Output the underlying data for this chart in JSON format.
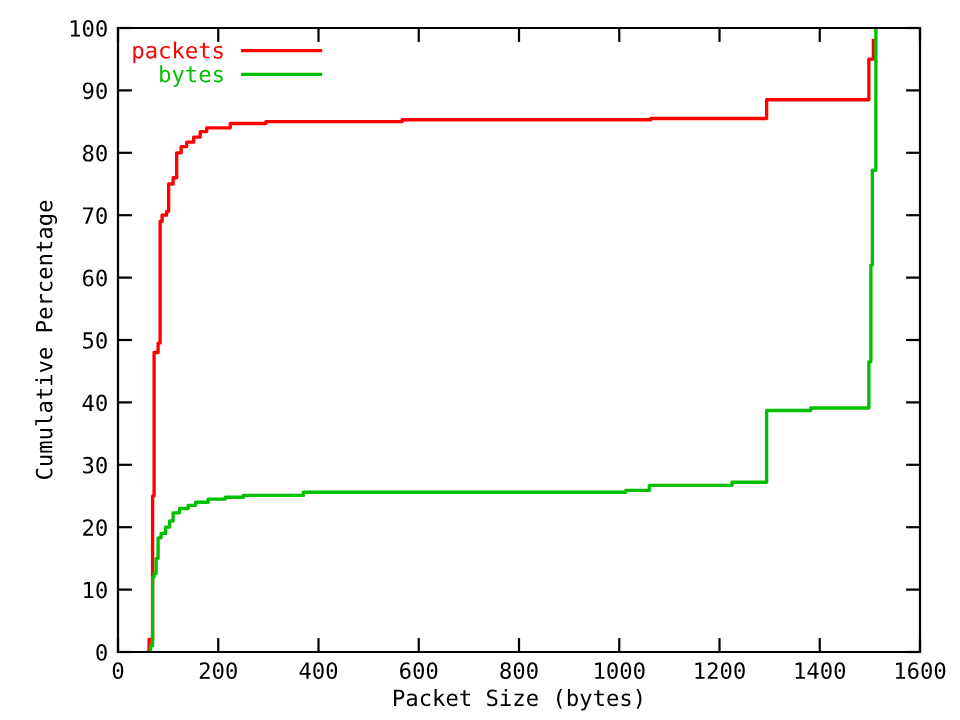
{
  "chart_data": {
    "type": "step",
    "xlabel": "Packet Size (bytes)",
    "ylabel": "Cumulative Percentage",
    "xlim": [
      0,
      1600
    ],
    "ylim": [
      0,
      100
    ],
    "xticks": [
      0,
      200,
      400,
      600,
      800,
      1000,
      1200,
      1400,
      1600
    ],
    "yticks": [
      0,
      10,
      20,
      30,
      40,
      50,
      60,
      70,
      80,
      90,
      100
    ],
    "grid": false,
    "legend": "top left",
    "line_style": "solid",
    "marker": "none",
    "series": [
      {
        "name": "packets",
        "color": "#ff0000",
        "x": [
          61,
          62,
          69,
          72,
          80,
          84,
          88,
          97,
          101,
          110,
          117,
          126,
          137,
          151,
          164,
          177,
          224,
          295,
          567,
          1063,
          1294,
          1498,
          1507
        ],
        "values": [
          0,
          2,
          25,
          48,
          49.5,
          69,
          70,
          70.6,
          75,
          76,
          80,
          81,
          81.7,
          82.5,
          83.4,
          84,
          84.7,
          85,
          85.3,
          85.5,
          88.5,
          95,
          98
        ]
      },
      {
        "name": "bytes",
        "color": "#00c000",
        "x": [
          61,
          65,
          69,
          72,
          76,
          80,
          86,
          95,
          103,
          110,
          123,
          140,
          155,
          180,
          214,
          250,
          370,
          1013,
          1060,
          1225,
          1294,
          1382,
          1498,
          1502,
          1505,
          1512
        ],
        "values": [
          0,
          1,
          12,
          12.6,
          15,
          18.3,
          19,
          20,
          21,
          22.3,
          23,
          23.5,
          24,
          24.5,
          24.8,
          25.1,
          25.6,
          25.9,
          26.7,
          27.2,
          38.7,
          39.1,
          46.5,
          62,
          77.2,
          100
        ]
      }
    ]
  }
}
